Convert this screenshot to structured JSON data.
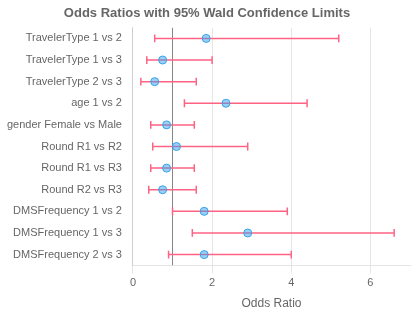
{
  "chart_data": {
    "type": "forest",
    "title": "Odds Ratios with 95% Wald Confidence Limits",
    "xlabel": "Odds Ratio",
    "orientation": "horizontal",
    "categories": [
      "TravelerType 1 vs 2",
      "TravelerType 1 vs 3",
      "TravelerType 2 vs 3",
      "age 1 vs 2",
      "gender Female vs Male",
      "Round R1 vs R2",
      "Round R1 vs R3",
      "Round R2 vs R3",
      "DMSFrequency 1 vs 2",
      "DMSFrequency 1 vs 3",
      "DMSFrequency 2 vs 3"
    ],
    "values": [
      1.85,
      0.75,
      0.55,
      2.35,
      0.85,
      1.1,
      0.85,
      0.75,
      1.8,
      2.9,
      1.8
    ],
    "ci_low": [
      0.55,
      0.35,
      0.2,
      1.3,
      0.45,
      0.5,
      0.45,
      0.4,
      1.0,
      1.5,
      0.9
    ],
    "ci_high": [
      5.2,
      2.0,
      1.6,
      4.4,
      1.55,
      2.9,
      1.55,
      1.6,
      3.9,
      6.6,
      4.0
    ],
    "reference_line": 1.0,
    "xlim": [
      0,
      7
    ],
    "xticks": [
      0,
      2,
      4,
      6
    ],
    "grid": "x"
  }
}
